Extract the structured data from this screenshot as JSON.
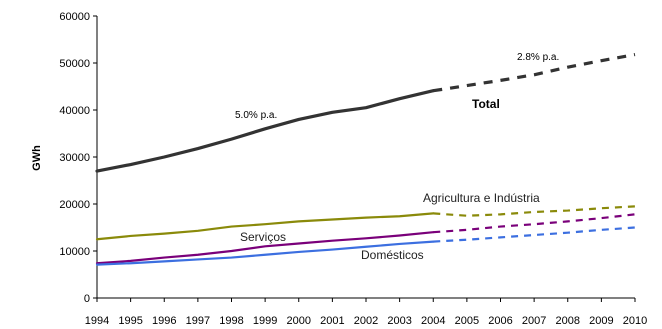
{
  "chart_data": {
    "type": "line",
    "title": "",
    "xlabel": "",
    "ylabel": "GWh",
    "ylim": [
      0,
      60000
    ],
    "yticks": [
      "0",
      "10000",
      "20000",
      "30000",
      "40000",
      "50000",
      "60000"
    ],
    "x": [
      "1994",
      "1995",
      "1996",
      "1997",
      "1998",
      "1999",
      "2000",
      "2001",
      "2002",
      "2003",
      "2004",
      "2005",
      "2006",
      "2007",
      "2008",
      "2009",
      "2010"
    ],
    "historical_end": "2004",
    "grid": false,
    "legend": "none",
    "series": [
      {
        "name": "Total",
        "color": "#333333",
        "values": [
          27000,
          28400,
          30000,
          31800,
          33800,
          36000,
          38000,
          39500,
          40500,
          42400,
          44100,
          45200,
          46300,
          47500,
          49100,
          50500,
          51800
        ]
      },
      {
        "name": "Agricultura e Indústria",
        "color": "#8a8a0a",
        "values": [
          12500,
          13200,
          13700,
          14300,
          15200,
          15700,
          16300,
          16700,
          17100,
          17400,
          18000,
          17500,
          17800,
          18300,
          18600,
          19100,
          19500
        ]
      },
      {
        "name": "Serviços",
        "color": "#7a007a",
        "values": [
          7400,
          7900,
          8600,
          9200,
          10000,
          11000,
          11600,
          12200,
          12700,
          13300,
          14000,
          14500,
          15200,
          15700,
          16300,
          17000,
          17800
        ]
      },
      {
        "name": "Domésticos",
        "color": "#3c6fe0",
        "values": [
          7100,
          7400,
          7800,
          8200,
          8600,
          9200,
          9800,
          10300,
          10900,
          11500,
          12000,
          12400,
          12900,
          13400,
          13900,
          14500,
          15000
        ]
      }
    ],
    "annotations": [
      {
        "text": "5.0% p.a."
      },
      {
        "text": "2.8% p.a."
      }
    ]
  }
}
